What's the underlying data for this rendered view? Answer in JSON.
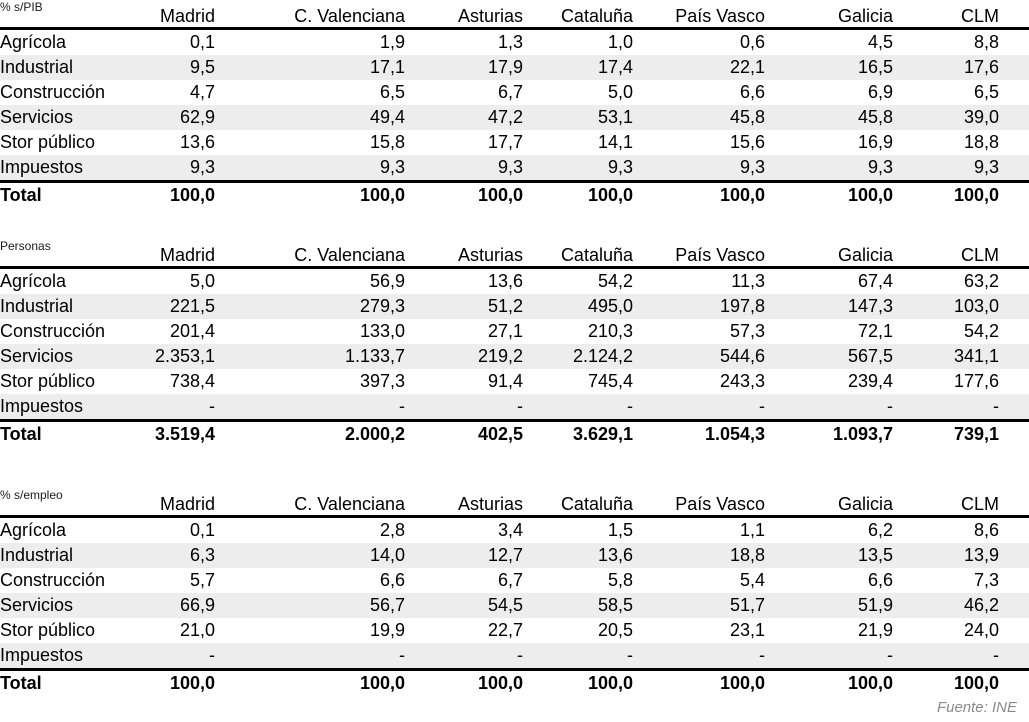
{
  "page": {
    "source_note": "Fuente: INE"
  },
  "columns": [
    "Madrid",
    "C. Valenciana",
    "Asturias",
    "Cataluña",
    "País Vasco",
    "Galicia",
    "CLM"
  ],
  "tables": [
    {
      "id": "pib",
      "corner_label": "% s/PIB",
      "rows": [
        {
          "label": "Agrícola",
          "values": [
            "0,1",
            "1,9",
            "1,3",
            "1,0",
            "0,6",
            "4,5",
            "8,8"
          ]
        },
        {
          "label": "Industrial",
          "values": [
            "9,5",
            "17,1",
            "17,9",
            "17,4",
            "22,1",
            "16,5",
            "17,6"
          ]
        },
        {
          "label": "Construcción",
          "values": [
            "4,7",
            "6,5",
            "6,7",
            "5,0",
            "6,6",
            "6,9",
            "6,5"
          ]
        },
        {
          "label": "Servicios",
          "values": [
            "62,9",
            "49,4",
            "47,2",
            "53,1",
            "45,8",
            "45,8",
            "39,0"
          ]
        },
        {
          "label": "Stor público",
          "values": [
            "13,6",
            "15,8",
            "17,7",
            "14,1",
            "15,6",
            "16,9",
            "18,8"
          ]
        },
        {
          "label": "Impuestos",
          "values": [
            "9,3",
            "9,3",
            "9,3",
            "9,3",
            "9,3",
            "9,3",
            "9,3"
          ]
        }
      ],
      "total": {
        "label": "Total",
        "values": [
          "100,0",
          "100,0",
          "100,0",
          "100,0",
          "100,0",
          "100,0",
          "100,0"
        ]
      }
    },
    {
      "id": "personas",
      "corner_label": "Personas",
      "rows": [
        {
          "label": "Agrícola",
          "values": [
            "5,0",
            "56,9",
            "13,6",
            "54,2",
            "11,3",
            "67,4",
            "63,2"
          ]
        },
        {
          "label": "Industrial",
          "values": [
            "221,5",
            "279,3",
            "51,2",
            "495,0",
            "197,8",
            "147,3",
            "103,0"
          ]
        },
        {
          "label": "Construcción",
          "values": [
            "201,4",
            "133,0",
            "27,1",
            "210,3",
            "57,3",
            "72,1",
            "54,2"
          ]
        },
        {
          "label": "Servicios",
          "values": [
            "2.353,1",
            "1.133,7",
            "219,2",
            "2.124,2",
            "544,6",
            "567,5",
            "341,1"
          ]
        },
        {
          "label": "Stor público",
          "values": [
            "738,4",
            "397,3",
            "91,4",
            "745,4",
            "243,3",
            "239,4",
            "177,6"
          ]
        },
        {
          "label": "Impuestos",
          "values": [
            "-",
            "-",
            "-",
            "-",
            "-",
            "-",
            "-"
          ]
        }
      ],
      "total": {
        "label": "Total",
        "values": [
          "3.519,4",
          "2.000,2",
          "402,5",
          "3.629,1",
          "1.054,3",
          "1.093,7",
          "739,1"
        ]
      }
    },
    {
      "id": "empleo",
      "corner_label": "% s/empleo",
      "rows": [
        {
          "label": "Agrícola",
          "values": [
            "0,1",
            "2,8",
            "3,4",
            "1,5",
            "1,1",
            "6,2",
            "8,6"
          ]
        },
        {
          "label": "Industrial",
          "values": [
            "6,3",
            "14,0",
            "12,7",
            "13,6",
            "18,8",
            "13,5",
            "13,9"
          ]
        },
        {
          "label": "Construcción",
          "values": [
            "5,7",
            "6,6",
            "6,7",
            "5,8",
            "5,4",
            "6,6",
            "7,3"
          ]
        },
        {
          "label": "Servicios",
          "values": [
            "66,9",
            "56,7",
            "54,5",
            "58,5",
            "51,7",
            "51,9",
            "46,2"
          ]
        },
        {
          "label": "Stor público",
          "values": [
            "21,0",
            "19,9",
            "22,7",
            "20,5",
            "23,1",
            "21,9",
            "24,0"
          ]
        },
        {
          "label": "Impuestos",
          "values": [
            "-",
            "-",
            "-",
            "-",
            "-",
            "-",
            "-"
          ]
        }
      ],
      "total": {
        "label": "Total",
        "values": [
          "100,0",
          "100,0",
          "100,0",
          "100,0",
          "100,0",
          "100,0",
          "100,0"
        ]
      }
    }
  ],
  "layout_colors": {
    "stripe": "#ededed",
    "rule": "#000000",
    "source_text": "#8a8a8a"
  }
}
